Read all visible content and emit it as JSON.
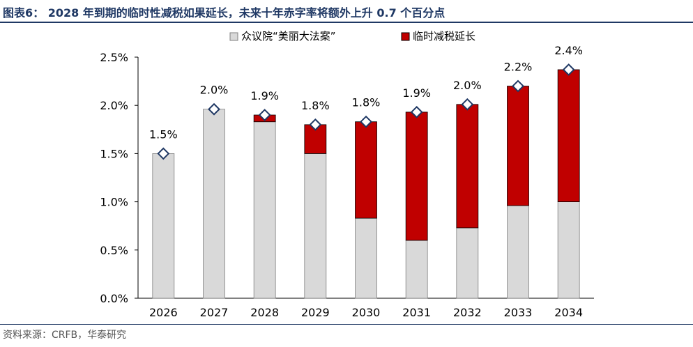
{
  "title": "图表6： 2028 年到期的临时性减税如果延长，未来十年赤字率将额外上升 0.7 个百分点",
  "source": "资料来源：CRFB，华泰研究",
  "colors": {
    "title": "#1f3864",
    "base": "#d9d9d9",
    "extension": "#c00000",
    "marker_fill": "#ffffff",
    "marker_stroke": "#1f3864"
  },
  "chart_data": {
    "type": "bar",
    "stacked": true,
    "categories": [
      "2026",
      "2027",
      "2028",
      "2029",
      "2030",
      "2031",
      "2032",
      "2033",
      "2034"
    ],
    "series": [
      {
        "name": "众议院“美丽大法案”",
        "color": "#d9d9d9",
        "values": [
          1.5,
          1.96,
          1.83,
          1.5,
          0.83,
          0.6,
          0.73,
          0.96,
          1.0
        ]
      },
      {
        "name": "临时减税延长",
        "color": "#c00000",
        "values": [
          0,
          0,
          0.07,
          0.3,
          1.0,
          1.33,
          1.28,
          1.24,
          1.37
        ]
      }
    ],
    "totals": [
      1.5,
      1.96,
      1.9,
      1.8,
      1.83,
      1.93,
      2.01,
      2.2,
      2.37
    ],
    "total_labels": [
      "1.5%",
      "2.0%",
      "1.9%",
      "1.8%",
      "1.8%",
      "1.9%",
      "2.0%",
      "2.2%",
      "2.4%"
    ],
    "yticks": [
      "0.0%",
      "0.5%",
      "1.0%",
      "1.5%",
      "2.0%",
      "2.5%"
    ],
    "ylim": [
      0,
      2.5
    ],
    "legend_position": "top-center",
    "grid": false
  }
}
